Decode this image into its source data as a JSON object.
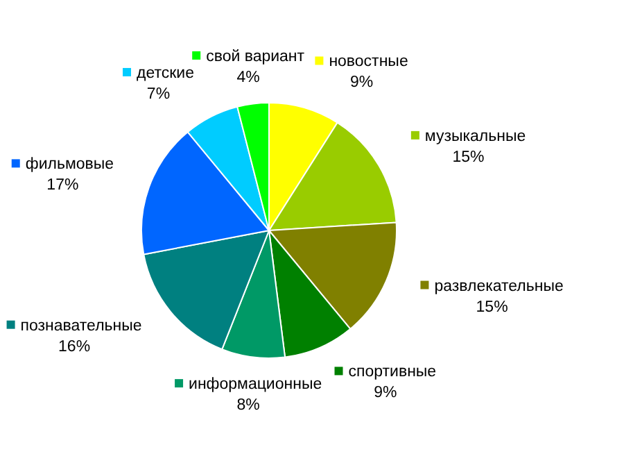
{
  "chart_data": {
    "type": "pie",
    "categories": [
      "новостные",
      "музыкальные",
      "развлекательные",
      "спортивные",
      "информационные",
      "познавательные",
      "фильмовые",
      "детские",
      "свой вариант"
    ],
    "values": [
      9,
      15,
      15,
      9,
      8,
      16,
      17,
      7,
      4
    ],
    "value_labels": [
      "9%",
      "15%",
      "15%",
      "9%",
      "8%",
      "16%",
      "17%",
      "7%",
      "4%"
    ],
    "colors": [
      "#ffff00",
      "#99cc00",
      "#808000",
      "#008000",
      "#009966",
      "#008080",
      "#0066ff",
      "#00ccff",
      "#00ff00"
    ],
    "legend": "top right"
  }
}
